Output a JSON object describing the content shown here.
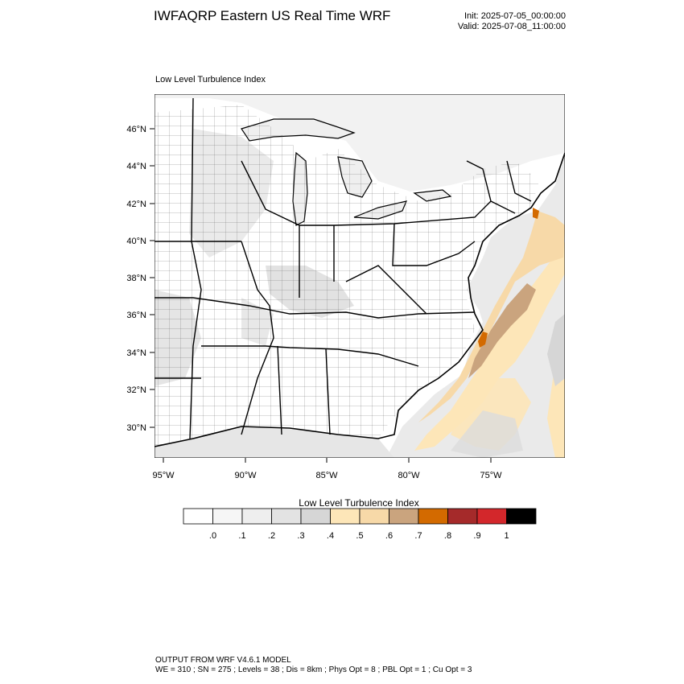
{
  "header": {
    "title": "IWFAQRP Eastern US Real Time WRF",
    "init": "Init: 2025-07-05_00:00:00",
    "valid": "Valid: 2025-07-08_11:00:00"
  },
  "map": {
    "subtitle": "Low Level Turbulence Index",
    "lon_labels": [
      "95°W",
      "90°W",
      "85°W",
      "80°W",
      "75°W"
    ],
    "lat_labels": [
      "46°N",
      "44°N",
      "42°N",
      "40°N",
      "38°N",
      "36°N",
      "34°N",
      "32°N",
      "30°N"
    ],
    "colors": {
      "land_background": "#ffffff",
      "light_gray": "#e6e6e6",
      "mid_gray": "#d9d9d9",
      "light_tan": "#fde6b8",
      "tan": "#f7d9a8",
      "brown": "#caa47e",
      "orange": "#d36a00"
    }
  },
  "colorbar": {
    "title": "Low Level Turbulence Index",
    "labels": [
      ".0",
      ".1",
      ".2",
      ".3",
      ".4",
      ".5",
      ".6",
      ".7",
      ".8",
      ".9",
      "1"
    ],
    "colors": [
      "#ffffff",
      "#f6f6f6",
      "#eeeeee",
      "#e3e3e3",
      "#d6d6d6",
      "#fde6b8",
      "#f7d9a8",
      "#caa47e",
      "#d36a00",
      "#a52a2a",
      "#d3272b",
      "#000000"
    ]
  },
  "footer": {
    "line1": "OUTPUT FROM WRF V4.6.1 MODEL",
    "line2": "WE = 310 ; SN = 275 ; Levels = 38 ; Dis = 8km ; Phys Opt = 8 ; PBL Opt = 1 ; Cu Opt = 3"
  }
}
